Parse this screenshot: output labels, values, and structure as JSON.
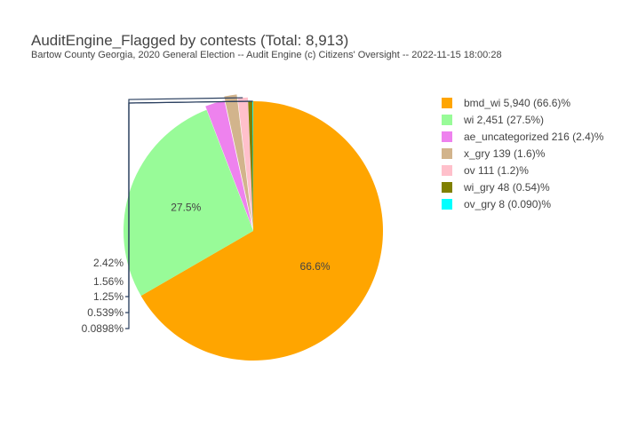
{
  "chart_data": {
    "type": "pie",
    "title": "AuditEngine_Flagged by contests (Total: 8,913)",
    "subtitle": "Bartow County Georgia, 2020 General Election -- Audit Engine (c) Citizens' Oversight -- 2022-11-15 18:00:28",
    "legend_position": "right",
    "slices": [
      {
        "legend": "bmd_wi 5,940 (66.6)%",
        "value": 5940,
        "label": "66.6%",
        "color": "#FFA500",
        "pull": 0
      },
      {
        "legend": "wi 2,451 (27.5%)",
        "value": 2451,
        "label": "27.5%",
        "color": "#98FB98",
        "pull": 0
      },
      {
        "legend": "ae_uncategorized 216 (2.4)%",
        "value": 216,
        "label": "2.42%",
        "color": "#EE82EE",
        "pull": 0.03
      },
      {
        "legend": "x_gry 139 (1.6)%",
        "value": 139,
        "label": "1.56%",
        "color": "#D2B48C",
        "pull": 0.06
      },
      {
        "legend": "ov 111 (1.2)%",
        "value": 111,
        "label": "1.25%",
        "color": "#FFC0CB",
        "pull": 0.03
      },
      {
        "legend": "wi_gry 48 (0.54)%",
        "value": 48,
        "label": "0.539%",
        "color": "#808000",
        "pull": 0
      },
      {
        "legend": "ov_gry 8 (0.090)%",
        "value": 8,
        "label": "0.0898%",
        "color": "#00FFFF",
        "pull": 0
      }
    ]
  }
}
